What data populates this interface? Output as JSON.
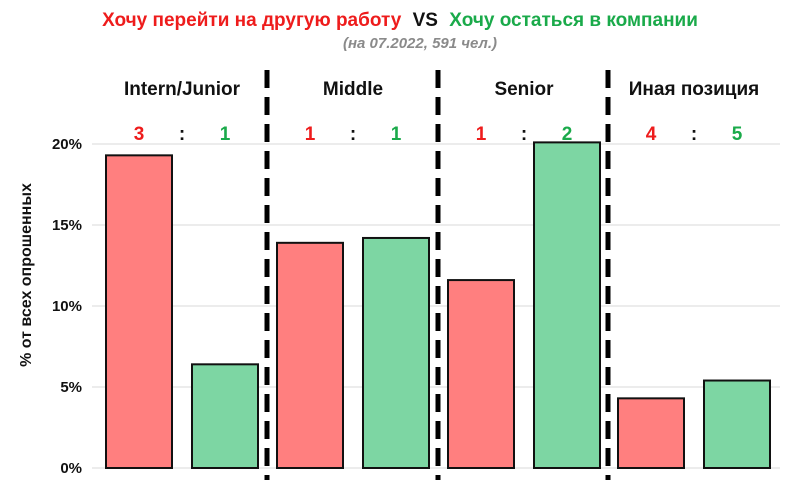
{
  "title": {
    "part1": "Хочу перейти на другую работу",
    "vs": "VS",
    "part2": "Хочу остаться в компании"
  },
  "subtitle": "(на 07.2022, 591 чел.)",
  "colors": {
    "leave": "#ff7f7f",
    "stay": "#7dd6a3",
    "leave_text": "#ee1c1c",
    "stay_text": "#1aaa4a"
  },
  "chart_data": {
    "type": "bar",
    "categories": [
      "Intern/Junior",
      "Middle",
      "Senior",
      "Иная позиция"
    ],
    "series": [
      {
        "name": "Хочу перейти на другую работу",
        "values": [
          19.3,
          13.9,
          11.6,
          4.3
        ]
      },
      {
        "name": "Хочу остаться в компании",
        "values": [
          6.4,
          14.2,
          20.1,
          5.4
        ]
      }
    ],
    "ratios": [
      {
        "leave": "3",
        "sep": ":",
        "stay": "1"
      },
      {
        "leave": "1",
        "sep": ":",
        "stay": "1"
      },
      {
        "leave": "1",
        "sep": ":",
        "stay": "2"
      },
      {
        "leave": "4",
        "sep": ":",
        "stay": "5"
      }
    ],
    "ylabel": "% от всех опрошенных",
    "ylim": [
      0,
      20
    ],
    "yticks": [
      0,
      5,
      10,
      15,
      20
    ],
    "ytick_labels": [
      "0%",
      "5%",
      "10%",
      "15%",
      "20%"
    ],
    "grid": true,
    "legend": "none"
  }
}
